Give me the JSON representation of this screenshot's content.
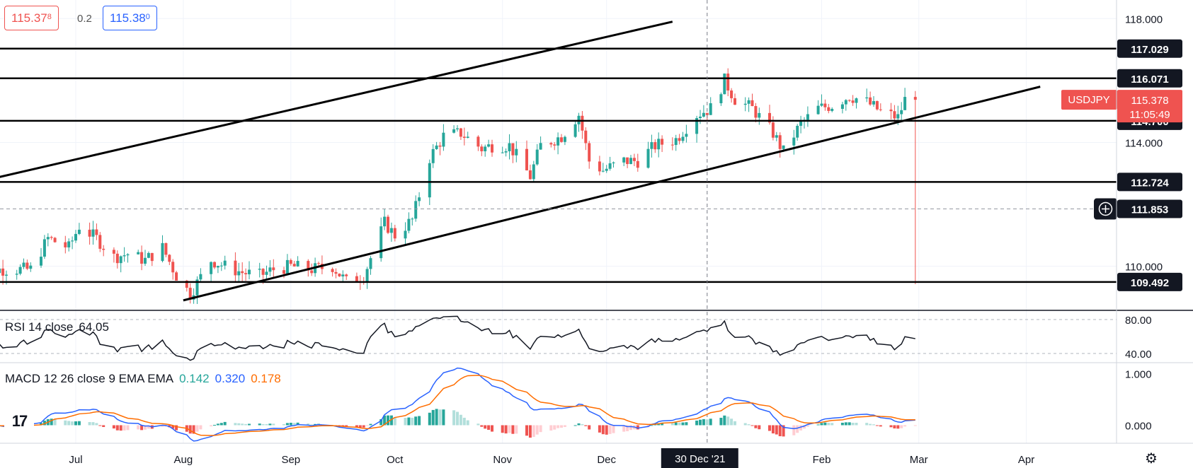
{
  "quote": {
    "bid_main": "115.37",
    "bid_sup": "8",
    "spread": "0.2",
    "ask_main": "115.38",
    "ask_sup": "0"
  },
  "symbol_badge": "USDJPY",
  "current_price": "115.378",
  "countdown": "11:05:49",
  "crosshair_price": "111.853",
  "crosshair_date": "30 Dec '21",
  "indicators": {
    "rsi": {
      "label": "RSI 14 close",
      "value": "64.05",
      "levels": [
        "80.00",
        "40.00"
      ]
    },
    "macd": {
      "label": "MACD 12 26 close 9 EMA EMA",
      "hist": "0.142",
      "macd": "0.320",
      "signal": "0.178",
      "ticks": [
        "1.000",
        "0.000"
      ]
    }
  },
  "colors": {
    "up": "#26a69a",
    "down": "#ef5350",
    "macd_line": "#2962ff",
    "signal_line": "#ff6d00",
    "hist_up": "#26a69a",
    "hist_up_light": "#b2dfdb",
    "hist_down": "#ef5350",
    "hist_down_light": "#ffcdd2"
  },
  "chart_data": {
    "type": "candlestick",
    "symbol": "USDJPY",
    "x_tick_labels": [
      "Jul",
      "Aug",
      "Sep",
      "Oct",
      "Nov",
      "Dec",
      "Feb",
      "Mar",
      "Apr"
    ],
    "y_tick_labels": [
      "118.000",
      "114.000",
      "110.000"
    ],
    "ylim": [
      108.6,
      118.6
    ],
    "horizontal_levels": [
      "117.029",
      "116.071",
      "114.700",
      "112.724",
      "109.492"
    ],
    "trend_channel": {
      "upper": [
        [
          "2021-06-05",
          112.78
        ],
        [
          "2021-12-20",
          117.9
        ]
      ],
      "lower": [
        [
          "2021-08-01",
          108.9
        ],
        [
          "2022-04-05",
          115.8
        ]
      ]
    },
    "closes": [
      {
        "d": "2021-06-18",
        "c": 109.9
      },
      {
        "d": "2021-06-23",
        "c": 110.9
      },
      {
        "d": "2021-06-29",
        "c": 110.6
      },
      {
        "d": "2021-07-02",
        "c": 111.3
      },
      {
        "d": "2021-07-07",
        "c": 110.9
      },
      {
        "d": "2021-07-12",
        "c": 110.3
      },
      {
        "d": "2021-07-16",
        "c": 110.4
      },
      {
        "d": "2021-07-21",
        "c": 110.2
      },
      {
        "d": "2021-07-26",
        "c": 110.6
      },
      {
        "d": "2021-07-30",
        "c": 109.7
      },
      {
        "d": "2021-08-03",
        "c": 109.1
      },
      {
        "d": "2021-08-09",
        "c": 110.2
      },
      {
        "d": "2021-08-13",
        "c": 110.0
      },
      {
        "d": "2021-08-18",
        "c": 109.8
      },
      {
        "d": "2021-08-23",
        "c": 109.7
      },
      {
        "d": "2021-08-27",
        "c": 109.9
      },
      {
        "d": "2021-09-01",
        "c": 110.0
      },
      {
        "d": "2021-09-07",
        "c": 109.9
      },
      {
        "d": "2021-09-13",
        "c": 110.0
      },
      {
        "d": "2021-09-17",
        "c": 109.5
      },
      {
        "d": "2021-09-22",
        "c": 109.7
      },
      {
        "d": "2021-09-28",
        "c": 111.4
      },
      {
        "d": "2021-10-01",
        "c": 111.0
      },
      {
        "d": "2021-10-06",
        "c": 111.5
      },
      {
        "d": "2021-10-11",
        "c": 113.5
      },
      {
        "d": "2021-10-15",
        "c": 114.2
      },
      {
        "d": "2021-10-20",
        "c": 114.3
      },
      {
        "d": "2021-10-26",
        "c": 113.8
      },
      {
        "d": "2021-10-29",
        "c": 113.9
      },
      {
        "d": "2021-11-03",
        "c": 113.9
      },
      {
        "d": "2021-11-09",
        "c": 112.9
      },
      {
        "d": "2021-11-12",
        "c": 113.9
      },
      {
        "d": "2021-11-18",
        "c": 114.2
      },
      {
        "d": "2021-11-23",
        "c": 114.9
      },
      {
        "d": "2021-11-26",
        "c": 113.4
      },
      {
        "d": "2021-11-30",
        "c": 113.1
      },
      {
        "d": "2021-12-06",
        "c": 113.4
      },
      {
        "d": "2021-12-10",
        "c": 113.4
      },
      {
        "d": "2021-12-15",
        "c": 113.9
      },
      {
        "d": "2021-12-21",
        "c": 114.1
      },
      {
        "d": "2021-12-27",
        "c": 114.9
      },
      {
        "d": "2021-12-31",
        "c": 115.1
      },
      {
        "d": "2022-01-04",
        "c": 116.0
      },
      {
        "d": "2022-01-07",
        "c": 115.4
      },
      {
        "d": "2022-01-12",
        "c": 115.1
      },
      {
        "d": "2022-01-18",
        "c": 114.3
      },
      {
        "d": "2022-01-21",
        "c": 113.7
      },
      {
        "d": "2022-01-26",
        "c": 114.6
      },
      {
        "d": "2022-01-31",
        "c": 115.1
      },
      {
        "d": "2022-02-04",
        "c": 115.2
      },
      {
        "d": "2022-02-09",
        "c": 115.5
      },
      {
        "d": "2022-02-14",
        "c": 115.3
      },
      {
        "d": "2022-02-18",
        "c": 115.0
      },
      {
        "d": "2022-02-23",
        "c": 114.8
      },
      {
        "d": "2022-02-25",
        "c": 115.378
      }
    ],
    "rsi": {
      "ylim": [
        30,
        90
      ]
    },
    "macd": {
      "ylim": [
        -0.35,
        1.2
      ]
    }
  }
}
